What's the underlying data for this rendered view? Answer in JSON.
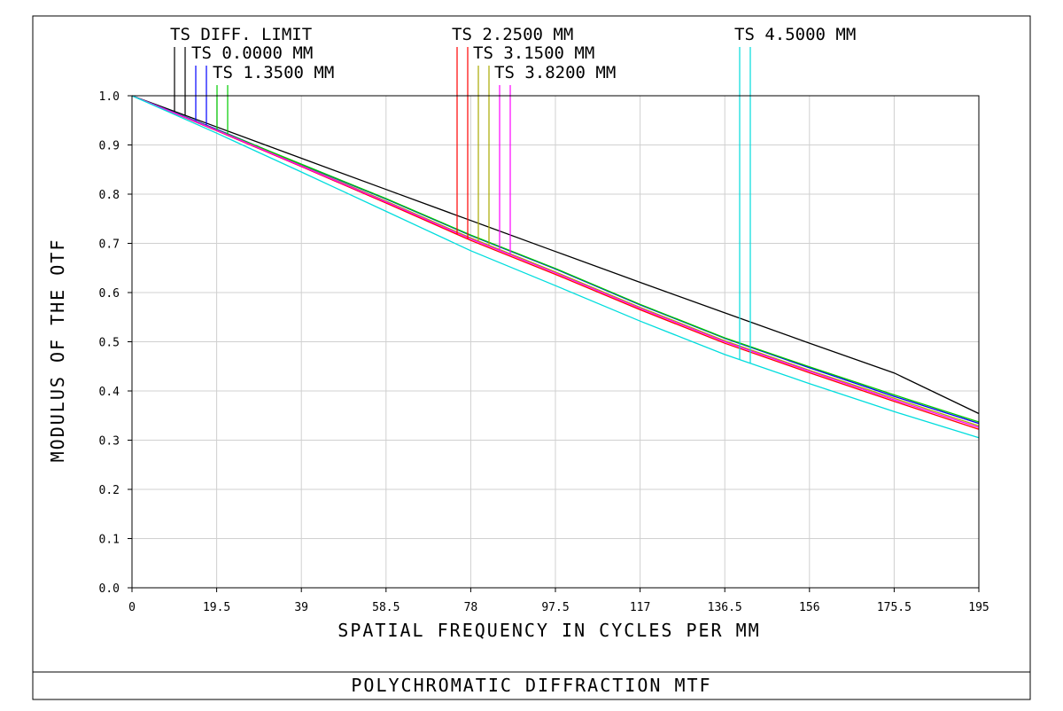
{
  "chart_data": {
    "type": "line",
    "title": "POLYCHROMATIC DIFFRACTION MTF",
    "xlabel": "SPATIAL FREQUENCY IN CYCLES PER MM",
    "ylabel": "MODULUS OF THE OTF",
    "xlim": [
      0,
      195
    ],
    "ylim": [
      0,
      1.0
    ],
    "x_ticks": [
      "0",
      "19.5",
      "39",
      "58.5",
      "78",
      "97.5",
      "117",
      "136.5",
      "156",
      "175.5",
      "195"
    ],
    "y_ticks": [
      "0.0",
      "0.1",
      "0.2",
      "0.3",
      "0.4",
      "0.5",
      "0.6",
      "0.7",
      "0.8",
      "0.9",
      "1.0"
    ],
    "grid": true,
    "legend_placement": "top",
    "series": [
      {
        "name": "TS DIFF. LIMIT",
        "color": "#000000",
        "x": [
          0,
          19.5,
          39,
          58.5,
          78,
          97.5,
          117,
          136.5,
          156,
          175.5,
          195
        ],
        "y": [
          1.0,
          0.9365,
          0.873,
          0.8096,
          0.7464,
          0.6834,
          0.6208,
          0.5587,
          0.4972,
          0.4366,
          0.354
        ]
      },
      {
        "name": "TS 0.0000 MM",
        "color": "#0000ff",
        "x": [
          0,
          19.5,
          39,
          58.5,
          78,
          97.5,
          117,
          136.5,
          156,
          175.5,
          195
        ],
        "y": [
          1.0,
          0.932,
          0.86,
          0.79,
          0.716,
          0.648,
          0.575,
          0.507,
          0.447,
          0.389,
          0.334
        ]
      },
      {
        "name": "TS 1.3500 MM",
        "color": "#00cc00",
        "x": [
          0,
          19.5,
          39,
          58.5,
          78,
          97.5,
          117,
          136.5,
          156,
          175.5,
          195
        ],
        "y": [
          1.0,
          0.931,
          0.861,
          0.791,
          0.717,
          0.649,
          0.576,
          0.508,
          0.449,
          0.392,
          0.337
        ]
      },
      {
        "name": "TS 2.2500 MM",
        "color": "#ff0000",
        "x": [
          0,
          19.5,
          39,
          58.5,
          78,
          97.5,
          117,
          136.5,
          156,
          175.5,
          195
        ],
        "y": [
          1.0,
          0.929,
          0.856,
          0.782,
          0.706,
          0.637,
          0.565,
          0.497,
          0.437,
          0.379,
          0.322
        ]
      },
      {
        "name": "TS 3.1500 MM",
        "color": "#aaaa00",
        "x": [
          0,
          19.5,
          39,
          58.5,
          78,
          97.5,
          117,
          136.5,
          156,
          175.5,
          195
        ],
        "y": [
          1.0,
          0.93,
          0.858,
          0.786,
          0.711,
          0.642,
          0.57,
          0.502,
          0.442,
          0.385,
          0.329
        ]
      },
      {
        "name": "TS 3.8200 MM",
        "color": "#ff00ff",
        "x": [
          0,
          19.5,
          39,
          58.5,
          78,
          97.5,
          117,
          136.5,
          156,
          175.5,
          195
        ],
        "y": [
          1.0,
          0.93,
          0.857,
          0.784,
          0.709,
          0.64,
          0.568,
          0.5,
          0.44,
          0.382,
          0.326
        ]
      },
      {
        "name": "TS 4.5000 MM",
        "color": "#00dddd",
        "x": [
          0,
          19.5,
          39,
          58.5,
          78,
          97.5,
          117,
          136.5,
          156,
          175.5,
          195
        ],
        "y": [
          1.0,
          0.924,
          0.845,
          0.765,
          0.685,
          0.614,
          0.542,
          0.474,
          0.415,
          0.358,
          0.305
        ]
      }
    ]
  }
}
